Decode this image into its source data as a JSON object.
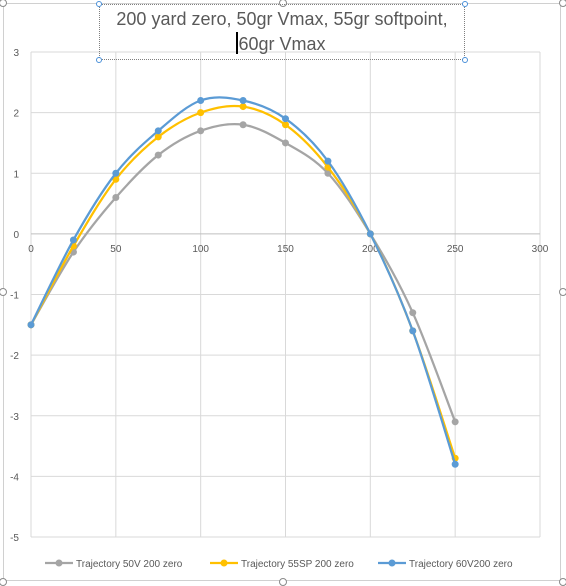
{
  "chart_data": {
    "type": "line",
    "title": "200 yard zero, 50gr Vmax, 55gr softpoint, 60gr Vmax",
    "title_lines": [
      "200 yard zero, 50gr Vmax, 55gr softpoint,",
      "60gr Vmax"
    ],
    "xlabel": "",
    "ylabel": "",
    "xlim": [
      0,
      300
    ],
    "ylim": [
      -5,
      3
    ],
    "x_ticks": [
      "0",
      "50",
      "100",
      "150",
      "200",
      "250",
      "300"
    ],
    "y_ticks": [
      "3",
      "2",
      "1",
      "0",
      "-1",
      "-2",
      "-3",
      "-4",
      "-5"
    ],
    "grid": true,
    "legend_position": "bottom",
    "x": [
      0,
      25,
      50,
      75,
      100,
      125,
      150,
      175,
      200,
      225,
      250
    ],
    "series": [
      {
        "name": "Trajectory 50V 200 zero",
        "color": "#a5a5a5",
        "values": [
          -1.5,
          -0.3,
          0.6,
          1.3,
          1.7,
          1.8,
          1.5,
          1.0,
          0.0,
          -1.3,
          -3.1
        ]
      },
      {
        "name": "Trajectory 55SP 200 zero",
        "color": "#ffc000",
        "values": [
          -1.5,
          -0.2,
          0.9,
          1.6,
          2.0,
          2.1,
          1.8,
          1.1,
          0.0,
          -1.6,
          -3.7
        ]
      },
      {
        "name": "Trajectory 60V200 zero",
        "color": "#5b9bd5",
        "values": [
          -1.5,
          -0.1,
          1.0,
          1.7,
          2.2,
          2.2,
          1.9,
          1.2,
          0.0,
          -1.6,
          -3.8
        ]
      }
    ]
  }
}
